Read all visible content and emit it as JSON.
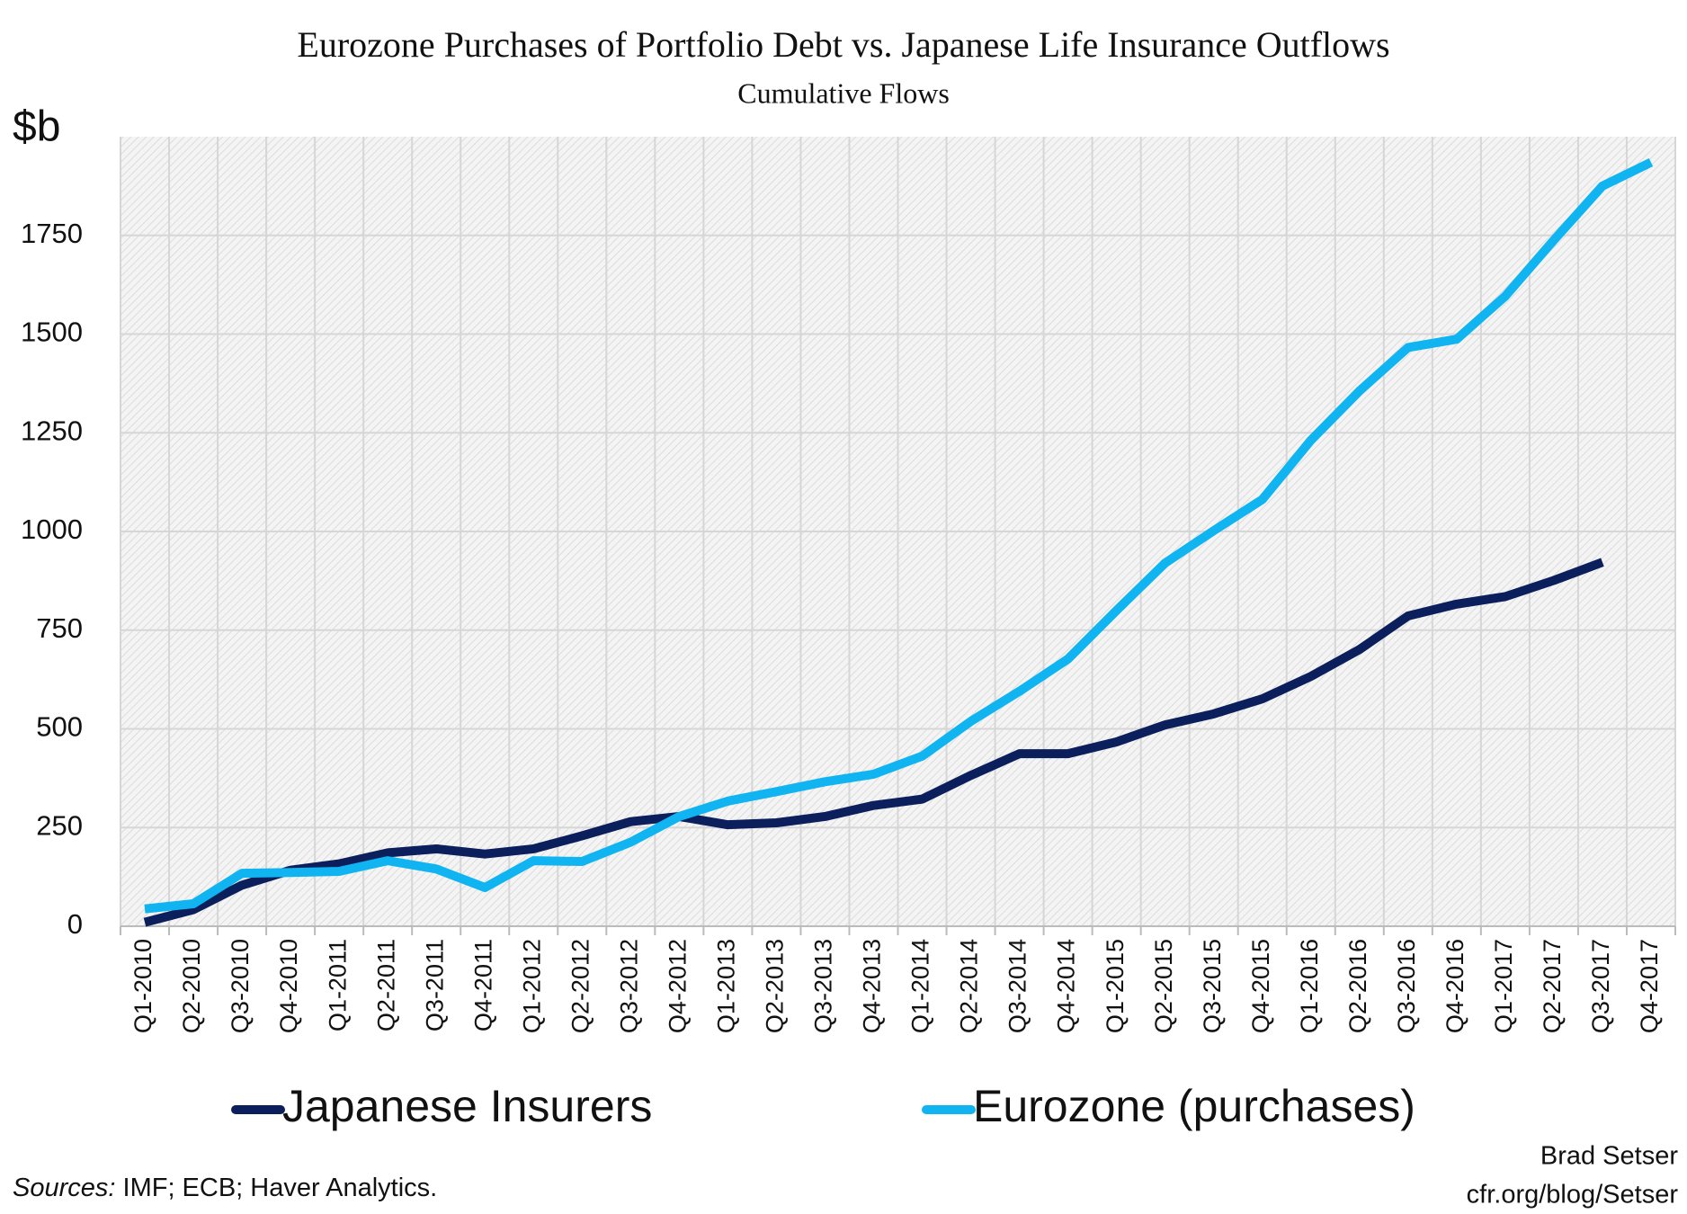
{
  "chart_data": {
    "type": "line",
    "title": "Eurozone Purchases of Portfolio Debt vs. Japanese Life Insurance Outflows",
    "subtitle": "Cumulative Flows",
    "y_label": "$b",
    "categories": [
      "Q1-2010",
      "Q2-2010",
      "Q3-2010",
      "Q4-2010",
      "Q1-2011",
      "Q2-2011",
      "Q3-2011",
      "Q4-2011",
      "Q1-2012",
      "Q2-2012",
      "Q3-2012",
      "Q4-2012",
      "Q1-2013",
      "Q2-2013",
      "Q3-2013",
      "Q4-2013",
      "Q1-2014",
      "Q2-2014",
      "Q3-2014",
      "Q4-2014",
      "Q1-2015",
      "Q2-2015",
      "Q3-2015",
      "Q4-2015",
      "Q1-2016",
      "Q2-2016",
      "Q3-2016",
      "Q4-2016",
      "Q1-2017",
      "Q2-2017",
      "Q3-2017",
      "Q4-2017"
    ],
    "series": [
      {
        "name": "Japanese Insurers",
        "color": "#0b1f5c",
        "values": [
          10,
          42,
          104,
          142,
          158,
          186,
          196,
          183,
          196,
          229,
          265,
          278,
          257,
          262,
          278,
          306,
          322,
          382,
          437,
          437,
          467,
          510,
          538,
          576,
          633,
          701,
          786,
          816,
          835,
          876,
          922,
          null
        ]
      },
      {
        "name": "Eurozone (purchases)",
        "color": "#0fb4f0",
        "values": [
          44,
          57,
          134,
          136,
          139,
          166,
          145,
          98,
          166,
          164,
          213,
          278,
          317,
          341,
          366,
          385,
          431,
          519,
          595,
          677,
          800,
          920,
          1002,
          1081,
          1231,
          1356,
          1466,
          1487,
          1596,
          1738,
          1875,
          1935
        ]
      }
    ],
    "ylim": [
      0,
      2000
    ],
    "yticks": [
      0,
      250,
      500,
      750,
      1000,
      1250,
      1500,
      1750
    ],
    "grid": true,
    "legend": "bottom",
    "sources_label": "Sources:",
    "sources": "IMF; ECB; Haver Analytics.",
    "author": "Brad Setser",
    "site": "cfr.org/blog/Setser"
  }
}
